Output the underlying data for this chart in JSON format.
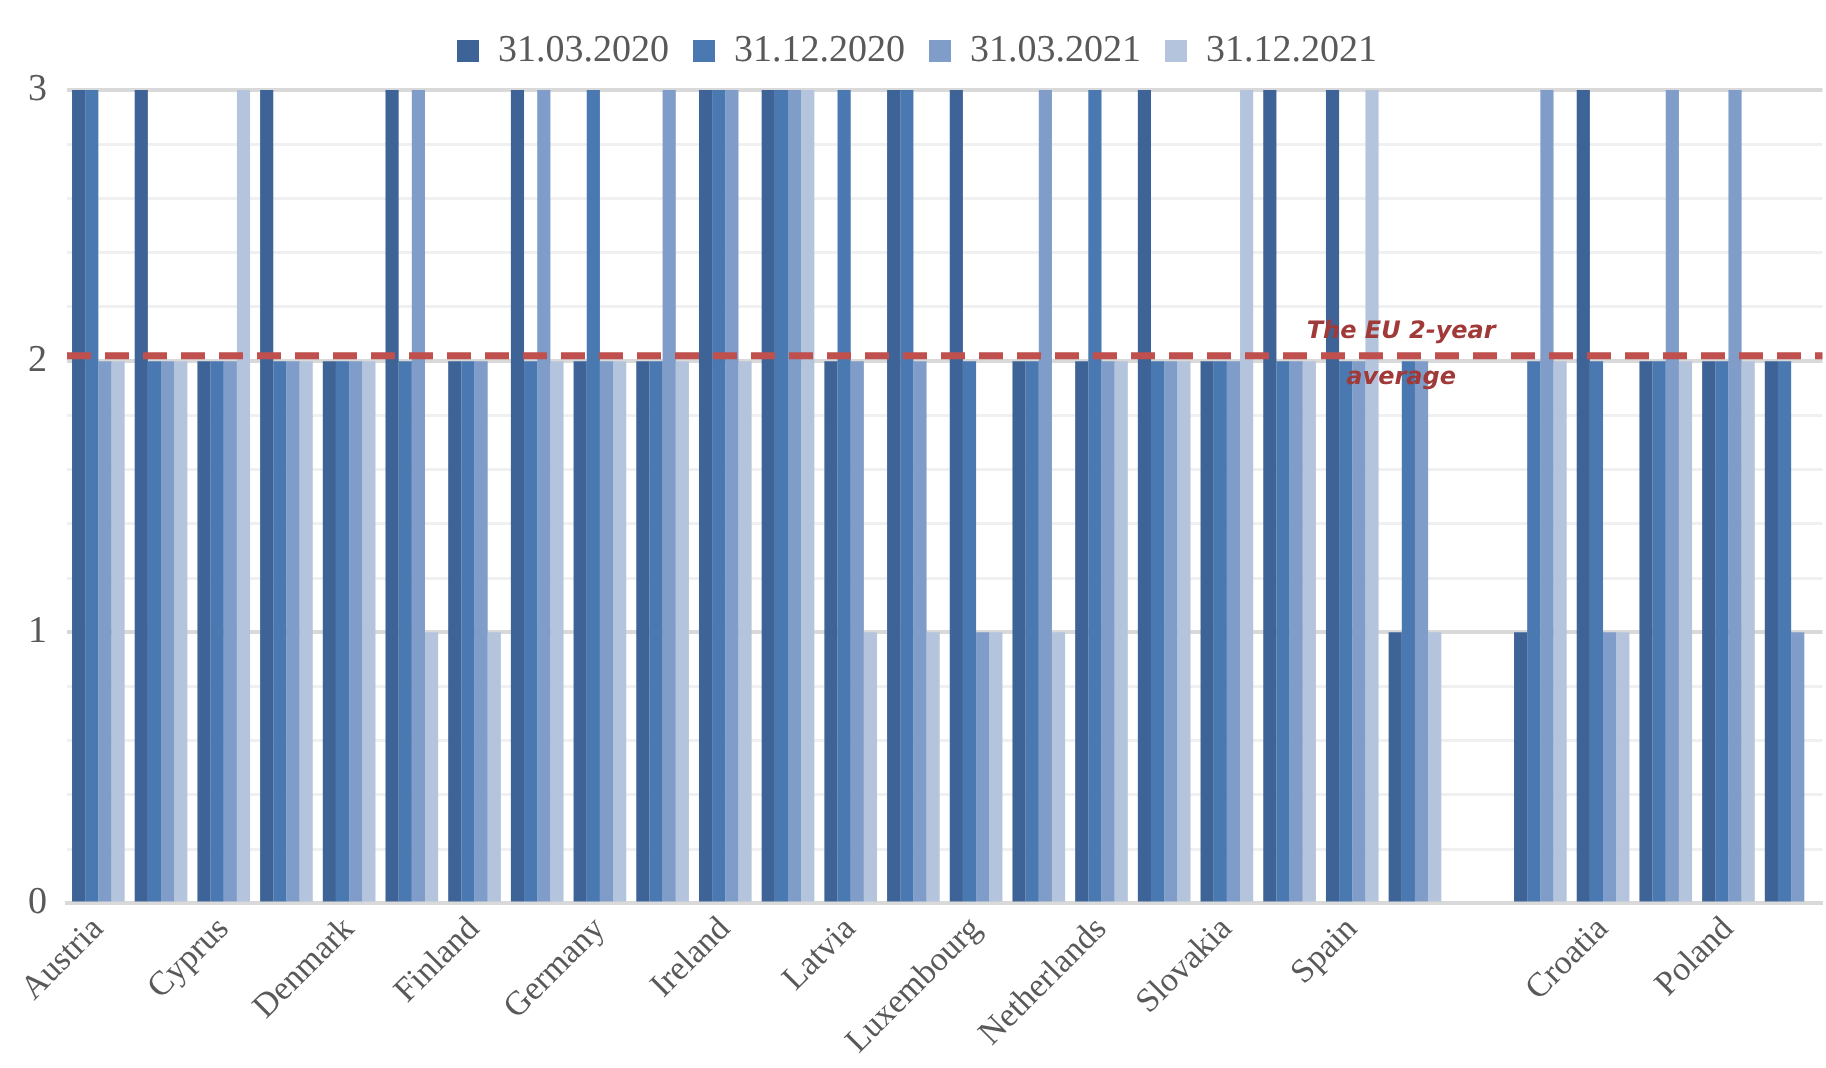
{
  "chart_data": {
    "type": "bar",
    "categories": [
      "Austria",
      null,
      "Cyprus",
      null,
      "Denmark",
      null,
      "Finland",
      null,
      "Germany",
      null,
      "Ireland",
      null,
      "Latvia",
      null,
      "Luxembourg",
      null,
      "Netherlands",
      null,
      "Slovakia",
      null,
      "Spain",
      null,
      null,
      null,
      "Croatia",
      null,
      "Poland",
      null
    ],
    "series": [
      {
        "name": "31.03.2020",
        "color": "#3e6497",
        "values": [
          3,
          3,
          2,
          3,
          2,
          3,
          2,
          3,
          2,
          2,
          3,
          3,
          2,
          3,
          3,
          2,
          2,
          3,
          2,
          3,
          3,
          1,
          null,
          1,
          3,
          2,
          2,
          2
        ]
      },
      {
        "name": "31.12.2020",
        "color": "#4a78b0",
        "values": [
          3,
          2,
          2,
          2,
          2,
          2,
          2,
          2,
          3,
          2,
          3,
          3,
          3,
          3,
          2,
          2,
          3,
          2,
          2,
          2,
          2,
          2,
          null,
          2,
          2,
          2,
          2,
          2
        ]
      },
      {
        "name": "31.03.2021",
        "color": "#7f9dc8",
        "values": [
          2,
          2,
          2,
          2,
          2,
          3,
          2,
          3,
          2,
          3,
          3,
          3,
          2,
          2,
          1,
          3,
          2,
          2,
          2,
          2,
          2,
          2,
          null,
          3,
          1,
          3,
          3,
          1
        ]
      },
      {
        "name": "31.12.2021",
        "color": "#b4c4dd",
        "values": [
          2,
          2,
          3,
          2,
          2,
          1,
          1,
          2,
          2,
          2,
          2,
          3,
          1,
          1,
          1,
          1,
          2,
          2,
          3,
          2,
          3,
          1,
          null,
          2,
          1,
          2,
          2,
          null
        ]
      }
    ],
    "ylim": [
      0,
      3
    ],
    "yticks": [
      0,
      {
        "value": 0.2,
        "label": null
      },
      {
        "value": 0.4,
        "label": null
      },
      {
        "value": 0.6,
        "label": null
      },
      {
        "value": 0.8,
        "label": null
      },
      1,
      {
        "value": 1.2,
        "label": null
      },
      {
        "value": 1.4,
        "label": null
      },
      {
        "value": 1.6,
        "label": null
      },
      {
        "value": 1.8,
        "label": null
      },
      2,
      {
        "value": 2.2,
        "label": null
      },
      {
        "value": 2.4,
        "label": null
      },
      {
        "value": 2.6,
        "label": null
      },
      {
        "value": 2.8,
        "label": null
      },
      3
    ],
    "grid": "y",
    "legend": "top",
    "ref_lines": [
      {
        "axis": "y",
        "value": 2.02,
        "label": "The EU 2-year average",
        "color": "#c0504d",
        "line_style": "dashed"
      }
    ]
  }
}
